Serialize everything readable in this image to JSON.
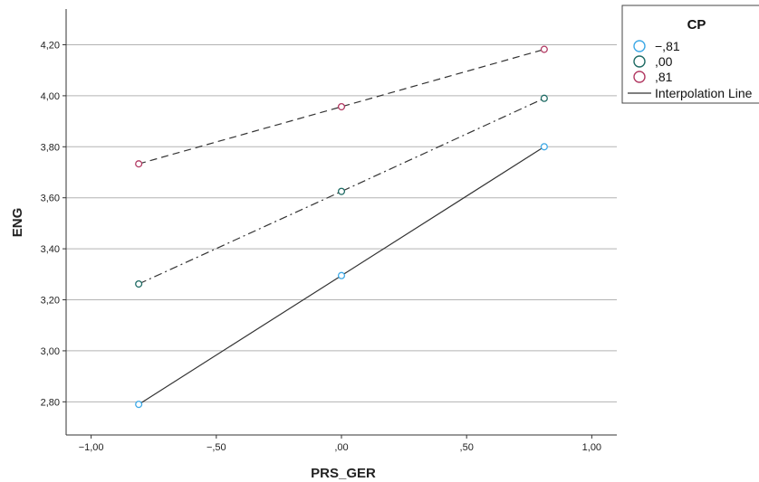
{
  "chart_data": {
    "type": "line",
    "xlabel": "PRS_GER",
    "ylabel": "ENG",
    "xlim": [
      -1.1,
      1.1
    ],
    "ylim": [
      2.67,
      4.34
    ],
    "x_ticks": [
      -1.0,
      -0.5,
      0.0,
      0.5,
      1.0
    ],
    "x_tick_labels": [
      "−1,00",
      "−,50",
      ",00",
      ",50",
      "1,00"
    ],
    "y_ticks": [
      2.8,
      3.0,
      3.2,
      3.4,
      3.6,
      3.8,
      4.0,
      4.2
    ],
    "y_tick_labels": [
      "2,80",
      "3,00",
      "3,20",
      "3,40",
      "3,60",
      "3,80",
      "4,00",
      "4,20"
    ],
    "grid": "horizontal",
    "x": [
      -0.81,
      0.0,
      0.81
    ],
    "series": [
      {
        "name": "−,81",
        "values": [
          2.79,
          3.295,
          3.8
        ],
        "color": "#3ea9e6",
        "line_style": "solid"
      },
      {
        "name": ",00",
        "values": [
          3.262,
          3.625,
          3.99
        ],
        "color": "#1f6b64",
        "line_style": "dash-dot"
      },
      {
        "name": ",81",
        "values": [
          3.733,
          3.957,
          4.182
        ],
        "color": "#b23a63",
        "line_style": "dashed"
      }
    ],
    "legend": {
      "title": "CP",
      "placement": "top-right",
      "entries": [
        "−,81",
        ",00",
        ",81"
      ],
      "line_entry": "Interpolation Line"
    }
  }
}
